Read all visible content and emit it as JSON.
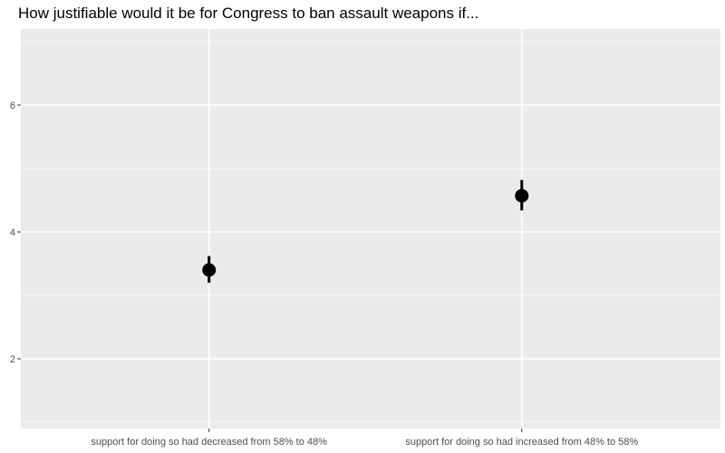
{
  "chart_data": {
    "type": "scatter",
    "title": "How justifiable would it be for Congress to ban assault weapons if...",
    "xlabel": "",
    "ylabel": "",
    "categories": [
      "support for doing so had decreased from 58% to 48%",
      "support for doing so had increased from 48% to 58%"
    ],
    "series": [
      {
        "values": [
          3.4,
          4.57
        ],
        "error_low": [
          3.2,
          4.34
        ],
        "error_high": [
          3.62,
          4.82
        ]
      }
    ],
    "yticks": [
      2,
      4,
      6
    ],
    "ylim": [
      0.9,
      7.2
    ],
    "grid": true,
    "colors": {
      "panel": "#ebebeb",
      "grid": "#ffffff",
      "point": "#000000"
    }
  }
}
